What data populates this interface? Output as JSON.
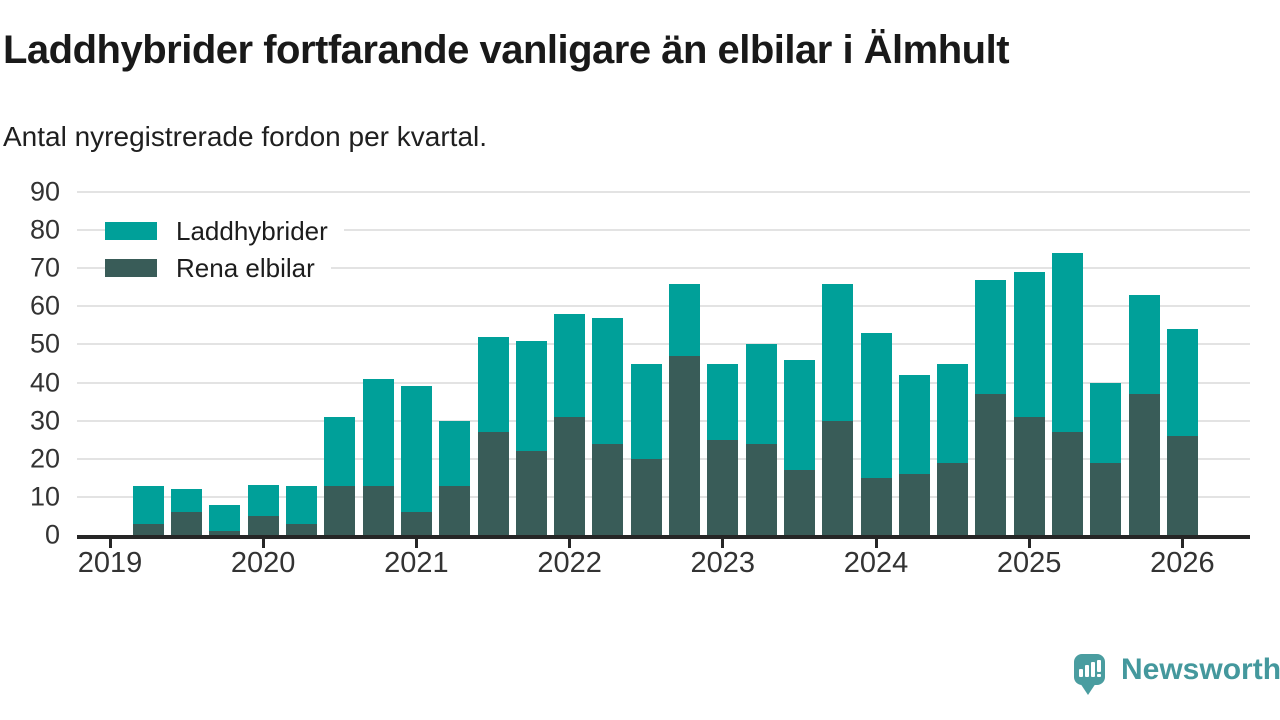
{
  "header": {
    "title": "Laddhybrider fortfarande vanligare än elbilar i Älmhult",
    "subtitle": "Antal nyregistrerade fordon per kvartal."
  },
  "legend": [
    {
      "label": "Laddhybrider",
      "color": "#00A099"
    },
    {
      "label": "Rena elbilar",
      "color": "#395C58"
    }
  ],
  "chart_data": {
    "type": "bar",
    "stacked": true,
    "stack_order": "bottom-to-top",
    "title": "Laddhybrider fortfarande vanligare än elbilar i Älmhult",
    "subtitle": "Antal nyregistrerade fordon per kvartal.",
    "xlabel": "",
    "ylabel": "",
    "ylim": [
      0,
      90
    ],
    "yticks": [
      0,
      10,
      20,
      30,
      40,
      50,
      60,
      70,
      80,
      90
    ],
    "xticks": [
      "2019",
      "2020",
      "2021",
      "2022",
      "2023",
      "2024",
      "2025",
      "2026"
    ],
    "grid": "horizontal",
    "legend_position": "top-left-inside",
    "x": [
      "2019 Q2",
      "2019 Q3",
      "2019 Q4",
      "2020 Q1",
      "2020 Q2",
      "2020 Q3",
      "2020 Q4",
      "2021 Q1",
      "2021 Q2",
      "2021 Q3",
      "2021 Q4",
      "2022 Q1",
      "2022 Q2",
      "2022 Q3",
      "2022 Q4",
      "2023 Q1",
      "2023 Q2",
      "2023 Q3",
      "2023 Q4",
      "2024 Q1",
      "2024 Q2",
      "2024 Q3",
      "2024 Q4",
      "2025 Q1",
      "2025 Q2",
      "2025 Q3",
      "2025 Q4",
      "2026 Q1"
    ],
    "series": [
      {
        "name": "Rena elbilar",
        "color": "#395C58",
        "values": [
          3,
          6,
          1,
          5,
          3,
          13,
          13,
          6,
          13,
          27,
          22,
          31,
          24,
          20,
          47,
          25,
          24,
          17,
          30,
          15,
          16,
          19,
          37,
          31,
          27,
          19,
          37,
          26
        ]
      },
      {
        "name": "Laddhybrider",
        "color": "#00A099",
        "values": [
          10,
          6,
          7,
          8,
          10,
          18,
          28,
          33,
          17,
          25,
          29,
          27,
          33,
          25,
          19,
          20,
          26,
          29,
          36,
          38,
          26,
          26,
          30,
          38,
          47,
          21,
          26,
          28
        ]
      }
    ],
    "totals": [
      13,
      12,
      8,
      13,
      13,
      31,
      41,
      39,
      30,
      52,
      51,
      58,
      57,
      45,
      66,
      45,
      50,
      46,
      66,
      53,
      42,
      45,
      67,
      69,
      74,
      40,
      63,
      54
    ]
  },
  "footer": {
    "brand": "Newsworthy",
    "brand_color": "#44989D",
    "logo": "newsworthy-speech-bubble-bar-chart-icon"
  }
}
